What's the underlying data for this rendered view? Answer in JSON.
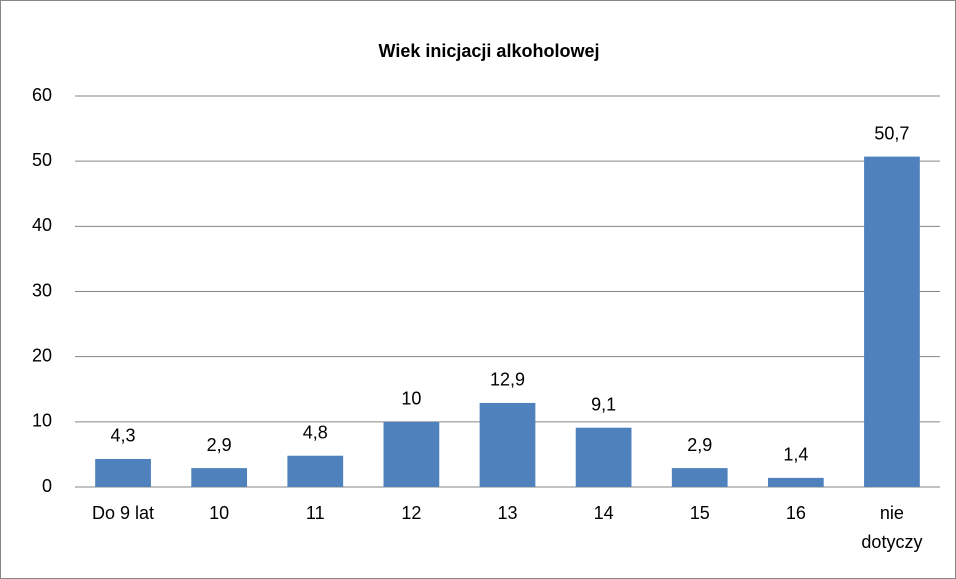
{
  "chart_data": {
    "type": "bar",
    "title": "Wiek inicjacji alkoholowej",
    "categories": [
      "Do 9 lat",
      "10",
      "11",
      "12",
      "13",
      "14",
      "15",
      "16",
      "nie dotyczy"
    ],
    "values": [
      4.3,
      2.9,
      4.8,
      10,
      12.9,
      9.1,
      2.9,
      1.4,
      50.7
    ],
    "value_labels": [
      "4,3",
      "2,9",
      "4,8",
      "10",
      "12,9",
      "9,1",
      "2,9",
      "1,4",
      "50,7"
    ],
    "color": "#4f81bd",
    "ylim": [
      0,
      60
    ],
    "yticks": [
      0,
      10,
      20,
      30,
      40,
      50,
      60
    ],
    "grid": true
  }
}
